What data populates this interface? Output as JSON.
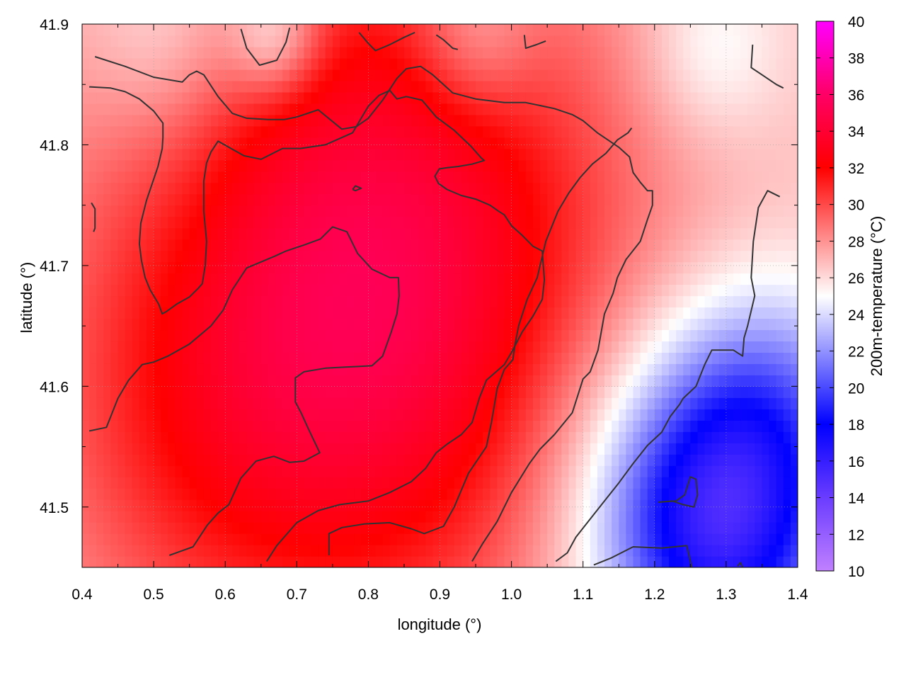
{
  "chart_data": {
    "type": "heatmap",
    "xlabel": "longitude (°)",
    "ylabel": "latitude (°)",
    "colorbar_label": "200m-temperature (°C)",
    "xlim": [
      0.4,
      1.4
    ],
    "ylim": [
      41.45,
      41.9
    ],
    "x_ticks": [
      0.4,
      0.5,
      0.6,
      0.7,
      0.8,
      0.9,
      1.0,
      1.1,
      1.2,
      1.3,
      1.4
    ],
    "x_tick_labels": [
      "0.4",
      "0.5",
      "0.6",
      "0.7",
      "0.8",
      "0.9",
      "1.0",
      "1.1",
      "1.2",
      "1.3",
      "1.4"
    ],
    "y_ticks": [
      41.5,
      41.6,
      41.7,
      41.8,
      41.9
    ],
    "y_tick_labels": [
      "41.5",
      "41.6",
      "41.7",
      "41.8",
      "41.9"
    ],
    "colorbar_range": [
      10,
      40
    ],
    "colorbar_ticks": [
      10,
      12,
      14,
      16,
      18,
      20,
      22,
      24,
      26,
      28,
      30,
      32,
      34,
      36,
      38,
      40
    ],
    "colorbar_tick_labels": [
      "10",
      "12",
      "14",
      "16",
      "18",
      "20",
      "22",
      "24",
      "26",
      "28",
      "30",
      "32",
      "34",
      "36",
      "38",
      "40"
    ],
    "colorbar_stops": [
      {
        "value": 10,
        "color": "#c080ff"
      },
      {
        "value": 14,
        "color": "#6a3cff"
      },
      {
        "value": 18,
        "color": "#0000ff"
      },
      {
        "value": 25,
        "color": "#ffffff"
      },
      {
        "value": 32,
        "color": "#ff0000"
      },
      {
        "value": 36,
        "color": "#ff0066"
      },
      {
        "value": 40,
        "color": "#ff00ff"
      }
    ],
    "grid": true,
    "field_peaks": [
      {
        "lon": 0.79,
        "lat": 41.71,
        "value": 29.5,
        "spread": 0.3
      },
      {
        "lon": 0.7,
        "lat": 41.62,
        "value": 28.8,
        "spread": 0.24
      },
      {
        "lon": 0.87,
        "lat": 41.62,
        "value": 28.6,
        "spread": 0.24
      },
      {
        "lon": 0.85,
        "lat": 41.8,
        "value": 28.2,
        "spread": 0.2
      },
      {
        "lon": 0.55,
        "lat": 41.55,
        "value": 27.6,
        "spread": 0.18
      },
      {
        "lon": 1.24,
        "lat": 41.51,
        "value": 20.5,
        "spread": 0.13
      },
      {
        "lon": 1.3,
        "lat": 41.47,
        "value": 20.8,
        "spread": 0.1
      },
      {
        "lon": 1.36,
        "lat": 41.58,
        "value": 22.2,
        "spread": 0.1
      },
      {
        "lon": 0.67,
        "lat": 41.89,
        "value": 22.6,
        "spread": 0.045
      },
      {
        "lon": 0.52,
        "lat": 41.89,
        "value": 24.0,
        "spread": 0.08
      },
      {
        "lon": 0.95,
        "lat": 41.89,
        "value": 23.8,
        "spread": 0.06
      },
      {
        "lon": 1.28,
        "lat": 41.88,
        "value": 24.2,
        "spread": 0.07
      },
      {
        "lon": 0.55,
        "lat": 41.75,
        "value": 26.0,
        "spread": 0.09
      }
    ],
    "field_background": 26.3,
    "contours": [
      [
        [
          0.418,
          41.873
        ],
        [
          0.46,
          41.865
        ],
        [
          0.5,
          41.856
        ],
        [
          0.54,
          41.852
        ],
        [
          0.55,
          41.858
        ],
        [
          0.56,
          41.861
        ],
        [
          0.57,
          41.858
        ],
        [
          0.59,
          41.84
        ],
        [
          0.61,
          41.826
        ],
        [
          0.63,
          41.822
        ],
        [
          0.66,
          41.821
        ],
        [
          0.683,
          41.821
        ],
        [
          0.7,
          41.823
        ],
        [
          0.73,
          41.829
        ],
        [
          0.763,
          41.813
        ],
        [
          0.783,
          41.815
        ],
        [
          0.8,
          41.822
        ],
        [
          0.82,
          41.837
        ],
        [
          0.84,
          41.855
        ],
        [
          0.853,
          41.863
        ],
        [
          0.873,
          41.865
        ],
        [
          0.89,
          41.858
        ],
        [
          0.918,
          41.843
        ],
        [
          0.95,
          41.838
        ],
        [
          0.99,
          41.835
        ],
        [
          1.02,
          41.835
        ],
        [
          1.06,
          41.83
        ],
        [
          1.085,
          41.825
        ],
        [
          1.1,
          41.82
        ],
        [
          1.12,
          41.81
        ],
        [
          1.15,
          41.798
        ],
        [
          1.165,
          41.79
        ],
        [
          1.17,
          41.777
        ],
        [
          1.18,
          41.769
        ],
        [
          1.19,
          41.762
        ],
        [
          1.197,
          41.762
        ],
        [
          1.197,
          41.75
        ],
        [
          1.19,
          41.738
        ],
        [
          1.18,
          41.72
        ],
        [
          1.16,
          41.705
        ],
        [
          1.148,
          41.69
        ],
        [
          1.142,
          41.677
        ],
        [
          1.13,
          41.66
        ],
        [
          1.121,
          41.63
        ],
        [
          1.11,
          41.612
        ],
        [
          1.1,
          41.606
        ],
        [
          1.085,
          41.578
        ],
        [
          1.06,
          41.56
        ],
        [
          1.04,
          41.548
        ],
        [
          1.025,
          41.536
        ],
        [
          1.0,
          41.512
        ],
        [
          0.98,
          41.488
        ],
        [
          0.96,
          41.47
        ],
        [
          0.945,
          41.455
        ]
      ],
      [
        [
          0.41,
          41.848
        ],
        [
          0.44,
          41.847
        ],
        [
          0.46,
          41.844
        ],
        [
          0.48,
          41.838
        ],
        [
          0.5,
          41.828
        ],
        [
          0.513,
          41.818
        ],
        [
          0.513,
          41.806
        ],
        [
          0.512,
          41.797
        ],
        [
          0.506,
          41.782
        ],
        [
          0.49,
          41.754
        ],
        [
          0.482,
          41.735
        ],
        [
          0.48,
          41.718
        ],
        [
          0.483,
          41.704
        ],
        [
          0.488,
          41.69
        ],
        [
          0.495,
          41.68
        ],
        [
          0.507,
          41.668
        ],
        [
          0.512,
          41.66
        ],
        [
          0.518,
          41.662
        ],
        [
          0.532,
          41.668
        ],
        [
          0.55,
          41.674
        ],
        [
          0.562,
          41.681
        ],
        [
          0.568,
          41.685
        ],
        [
          0.572,
          41.7
        ],
        [
          0.574,
          41.72
        ],
        [
          0.57,
          41.745
        ],
        [
          0.57,
          41.77
        ],
        [
          0.574,
          41.785
        ],
        [
          0.58,
          41.794
        ],
        [
          0.59,
          41.803
        ],
        [
          0.605,
          41.798
        ],
        [
          0.626,
          41.791
        ],
        [
          0.65,
          41.788
        ],
        [
          0.68,
          41.797
        ],
        [
          0.705,
          41.797
        ],
        [
          0.74,
          41.8
        ],
        [
          0.778,
          41.81
        ],
        [
          0.79,
          41.822
        ],
        [
          0.8,
          41.832
        ],
        [
          0.815,
          41.841
        ],
        [
          0.83,
          41.845
        ],
        [
          0.84,
          41.838
        ],
        [
          0.853,
          41.84
        ],
        [
          0.875,
          41.837
        ],
        [
          0.895,
          41.823
        ],
        [
          0.92,
          41.812
        ],
        [
          0.943,
          41.799
        ],
        [
          0.958,
          41.789
        ],
        [
          0.962,
          41.787
        ],
        [
          0.945,
          41.784
        ],
        [
          0.925,
          41.782
        ],
        [
          0.91,
          41.781
        ],
        [
          0.899,
          41.78
        ],
        [
          0.893,
          41.774
        ],
        [
          0.898,
          41.768
        ],
        [
          0.91,
          41.763
        ],
        [
          0.93,
          41.758
        ],
        [
          0.95,
          41.755
        ],
        [
          0.97,
          41.75
        ],
        [
          0.982,
          41.745
        ],
        [
          0.99,
          41.742
        ],
        [
          1.0,
          41.733
        ],
        [
          1.015,
          41.725
        ],
        [
          1.03,
          41.716
        ],
        [
          1.043,
          41.712
        ],
        [
          1.046,
          41.688
        ],
        [
          1.043,
          41.672
        ],
        [
          1.03,
          41.658
        ],
        [
          1.015,
          41.645
        ],
        [
          1.0,
          41.628
        ],
        [
          0.99,
          41.618
        ],
        [
          0.965,
          41.605
        ],
        [
          0.955,
          41.59
        ],
        [
          0.945,
          41.57
        ],
        [
          0.93,
          41.56
        ],
        [
          0.91,
          41.552
        ],
        [
          0.895,
          41.545
        ],
        [
          0.88,
          41.532
        ],
        [
          0.86,
          41.521
        ],
        [
          0.83,
          41.512
        ],
        [
          0.8,
          41.505
        ],
        [
          0.76,
          41.502
        ],
        [
          0.73,
          41.497
        ],
        [
          0.7,
          41.487
        ],
        [
          0.672,
          41.468
        ],
        [
          0.658,
          41.455
        ]
      ],
      [
        [
          0.41,
          41.563
        ],
        [
          0.434,
          41.566
        ],
        [
          0.45,
          41.59
        ],
        [
          0.465,
          41.605
        ],
        [
          0.484,
          41.618
        ],
        [
          0.5,
          41.62
        ],
        [
          0.52,
          41.625
        ],
        [
          0.55,
          41.635
        ],
        [
          0.58,
          41.65
        ],
        [
          0.597,
          41.663
        ],
        [
          0.61,
          41.68
        ],
        [
          0.63,
          41.698
        ],
        [
          0.65,
          41.703
        ],
        [
          0.67,
          41.708
        ],
        [
          0.685,
          41.712
        ],
        [
          0.71,
          41.717
        ],
        [
          0.733,
          41.722
        ],
        [
          0.75,
          41.732
        ],
        [
          0.77,
          41.728
        ],
        [
          0.785,
          41.71
        ],
        [
          0.805,
          41.697
        ],
        [
          0.83,
          41.69
        ],
        [
          0.842,
          41.69
        ],
        [
          0.843,
          41.675
        ],
        [
          0.84,
          41.66
        ],
        [
          0.832,
          41.645
        ],
        [
          0.82,
          41.625
        ],
        [
          0.805,
          41.617
        ],
        [
          0.77,
          41.616
        ],
        [
          0.74,
          41.615
        ],
        [
          0.71,
          41.612
        ],
        [
          0.698,
          41.607
        ],
        [
          0.698,
          41.587
        ],
        [
          0.706,
          41.578
        ],
        [
          0.716,
          41.565
        ],
        [
          0.732,
          41.545
        ],
        [
          0.71,
          41.538
        ],
        [
          0.69,
          41.537
        ],
        [
          0.668,
          41.542
        ],
        [
          0.643,
          41.538
        ],
        [
          0.622,
          41.524
        ],
        [
          0.605,
          41.502
        ],
        [
          0.59,
          41.495
        ],
        [
          0.575,
          41.485
        ],
        [
          0.555,
          41.467
        ],
        [
          0.522,
          41.46
        ]
      ],
      [
        [
          0.745,
          41.46
        ],
        [
          0.745,
          41.478
        ],
        [
          0.763,
          41.483
        ],
        [
          0.795,
          41.486
        ],
        [
          0.83,
          41.487
        ],
        [
          0.86,
          41.482
        ],
        [
          0.878,
          41.478
        ],
        [
          0.905,
          41.484
        ],
        [
          0.92,
          41.5
        ],
        [
          0.94,
          41.528
        ],
        [
          0.965,
          41.55
        ],
        [
          0.972,
          41.57
        ],
        [
          0.98,
          41.598
        ],
        [
          0.99,
          41.614
        ],
        [
          1.002,
          41.622
        ],
        [
          1.005,
          41.635
        ],
        [
          1.01,
          41.65
        ],
        [
          1.022,
          41.672
        ],
        [
          1.036,
          41.69
        ],
        [
          1.048,
          41.72
        ],
        [
          1.065,
          41.745
        ],
        [
          1.08,
          41.76
        ],
        [
          1.096,
          41.773
        ],
        [
          1.113,
          41.784
        ],
        [
          1.132,
          41.793
        ],
        [
          1.148,
          41.804
        ],
        [
          1.163,
          41.81
        ],
        [
          1.168,
          41.814
        ]
      ],
      [
        [
          0.413,
          41.752
        ],
        [
          0.418,
          41.747
        ],
        [
          0.418,
          41.731
        ],
        [
          0.416,
          41.728
        ]
      ],
      [
        [
          0.622,
          41.896
        ],
        [
          0.63,
          41.88
        ],
        [
          0.648,
          41.866
        ],
        [
          0.672,
          41.87
        ],
        [
          0.685,
          41.885
        ],
        [
          0.69,
          41.897
        ]
      ],
      [
        [
          0.787,
          41.893
        ],
        [
          0.8,
          41.884
        ],
        [
          0.81,
          41.878
        ],
        [
          0.83,
          41.883
        ],
        [
          0.85,
          41.889
        ],
        [
          0.865,
          41.893
        ]
      ],
      [
        [
          0.895,
          41.891
        ],
        [
          0.905,
          41.887
        ],
        [
          0.918,
          41.88
        ],
        [
          0.925,
          41.879
        ]
      ],
      [
        [
          1.018,
          41.891
        ],
        [
          1.02,
          41.88
        ],
        [
          1.035,
          41.883
        ],
        [
          1.048,
          41.886
        ]
      ],
      [
        [
          0.778,
          41.763
        ],
        [
          0.782,
          41.766
        ],
        [
          0.79,
          41.764
        ],
        [
          0.782,
          41.762
        ],
        [
          0.778,
          41.763
        ]
      ],
      [
        [
          1.337,
          41.883
        ],
        [
          1.335,
          41.864
        ],
        [
          1.35,
          41.858
        ],
        [
          1.37,
          41.85
        ],
        [
          1.38,
          41.847
        ]
      ],
      [
        [
          1.375,
          41.757
        ],
        [
          1.358,
          41.762
        ],
        [
          1.345,
          41.748
        ],
        [
          1.338,
          41.72
        ],
        [
          1.335,
          41.69
        ],
        [
          1.34,
          41.675
        ],
        [
          1.33,
          41.65
        ],
        [
          1.325,
          41.64
        ],
        [
          1.323,
          41.625
        ],
        [
          1.31,
          41.63
        ],
        [
          1.28,
          41.63
        ],
        [
          1.27,
          41.618
        ],
        [
          1.258,
          41.6
        ],
        [
          1.24,
          41.59
        ],
        [
          1.235,
          41.585
        ],
        [
          1.222,
          41.575
        ],
        [
          1.21,
          41.562
        ],
        [
          1.19,
          41.551
        ],
        [
          1.17,
          41.536
        ],
        [
          1.15,
          41.52
        ],
        [
          1.13,
          41.505
        ],
        [
          1.11,
          41.49
        ],
        [
          1.09,
          41.475
        ],
        [
          1.078,
          41.462
        ],
        [
          1.062,
          41.455
        ]
      ],
      [
        [
          1.205,
          41.504
        ],
        [
          1.23,
          41.505
        ],
        [
          1.242,
          41.51
        ],
        [
          1.25,
          41.525
        ],
        [
          1.258,
          41.523
        ],
        [
          1.26,
          41.51
        ],
        [
          1.255,
          41.5
        ],
        [
          1.24,
          41.502
        ],
        [
          1.225,
          41.505
        ],
        [
          1.205,
          41.504
        ]
      ],
      [
        [
          1.115,
          41.452
        ],
        [
          1.14,
          41.458
        ],
        [
          1.17,
          41.467
        ],
        [
          1.21,
          41.466
        ],
        [
          1.245,
          41.468
        ],
        [
          1.252,
          41.45
        ]
      ],
      [
        [
          1.316,
          41.451
        ],
        [
          1.32,
          41.454
        ],
        [
          1.323,
          41.45
        ]
      ]
    ]
  }
}
